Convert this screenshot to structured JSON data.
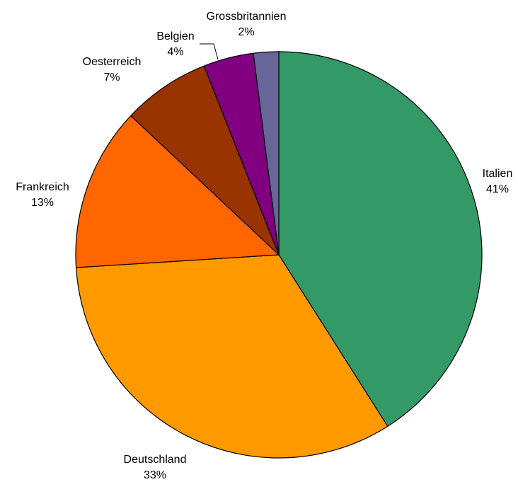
{
  "chart_data": {
    "type": "pie",
    "slices": [
      {
        "label": "Italien",
        "value": 41,
        "value_label": "41%",
        "color": "#339966"
      },
      {
        "label": "Deutschland",
        "value": 33,
        "value_label": "33%",
        "color": "#FF9900"
      },
      {
        "label": "Frankreich",
        "value": 13,
        "value_label": "13%",
        "color": "#FF6600"
      },
      {
        "label": "Oesterreich",
        "value": 7,
        "value_label": "7%",
        "color": "#993300"
      },
      {
        "label": "Belgien",
        "value": 4,
        "value_label": "4%",
        "color": "#800080"
      },
      {
        "label": "Grossbritannien",
        "value": 2,
        "value_label": "2%",
        "color": "#666699"
      }
    ],
    "start_angle": "12 o'clock",
    "direction": "clockwise",
    "legend": "none"
  }
}
